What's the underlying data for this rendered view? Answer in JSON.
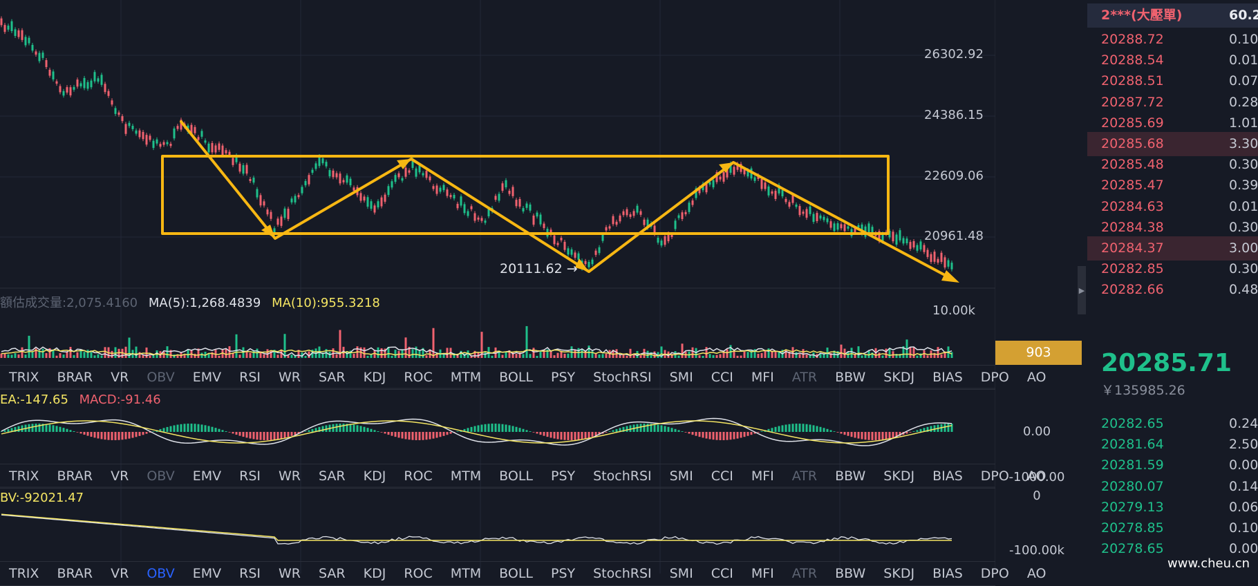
{
  "colors": {
    "background": "#161a25",
    "up": "#1fc08b",
    "down": "#f0626f",
    "annotation": "#f7b713",
    "ma5": "#e0e3ea",
    "ma10": "#f5e663",
    "badge": "#d4a032"
  },
  "main_chart": {
    "price_axis": [
      "26302.92",
      "24386.15",
      "22609.06",
      "20961.48"
    ],
    "low_label": "20111.62 →"
  },
  "volume_panel": {
    "label_vol": "額估成交量:2,075.4160",
    "label_ma5": "MA(5):1,268.4839",
    "label_ma10": "MA(10):955.3218",
    "axis": [
      "10.00k"
    ],
    "badge_value": "903"
  },
  "macd_panel": {
    "label_dea": "EA:-147.65",
    "label_macd": "MACD:-91.46",
    "axis": [
      "0.00",
      "-1000.00"
    ]
  },
  "obv_panel": {
    "label_obv": "BV:-92021.47",
    "axis": [
      "0",
      "-100.00k"
    ]
  },
  "indicator_tabs": [
    "TRIX",
    "BRAR",
    "VR",
    "OBV",
    "EMV",
    "RSI",
    "WR",
    "SAR",
    "KDJ",
    "ROC",
    "MTM",
    "BOLL",
    "PSY",
    "StochRSI",
    "SMI",
    "CCI",
    "MFI",
    "ATR",
    "BBW",
    "SKDJ",
    "BIAS",
    "DPO",
    "AO"
  ],
  "orderbook": {
    "header_price": "2***(大壓單)",
    "header_qty": "60.2",
    "asks": [
      {
        "price": "20288.72",
        "qty": "0.10"
      },
      {
        "price": "20288.54",
        "qty": "0.01"
      },
      {
        "price": "20288.51",
        "qty": "0.07"
      },
      {
        "price": "20287.72",
        "qty": "0.28"
      },
      {
        "price": "20285.69",
        "qty": "1.01"
      },
      {
        "price": "20285.68",
        "qty": "3.30"
      },
      {
        "price": "20285.48",
        "qty": "0.30"
      },
      {
        "price": "20285.47",
        "qty": "0.39"
      },
      {
        "price": "20284.63",
        "qty": "0.01"
      },
      {
        "price": "20284.38",
        "qty": "0.30"
      },
      {
        "price": "20284.37",
        "qty": "3.00"
      },
      {
        "price": "20282.85",
        "qty": "0.30"
      },
      {
        "price": "20282.66",
        "qty": "0.48"
      }
    ],
    "last_price": "20285.71",
    "last_price_cny": "￥135985.26",
    "bids": [
      {
        "price": "20282.65",
        "qty": "0.24"
      },
      {
        "price": "20281.64",
        "qty": "2.50"
      },
      {
        "price": "20281.59",
        "qty": "0.00"
      },
      {
        "price": "20280.07",
        "qty": "0.14"
      },
      {
        "price": "20279.13",
        "qty": "0.06"
      },
      {
        "price": "20278.85",
        "qty": "0.10"
      },
      {
        "price": "20278.65",
        "qty": "0.00"
      }
    ]
  },
  "watermark": "www.cheu.cn"
}
